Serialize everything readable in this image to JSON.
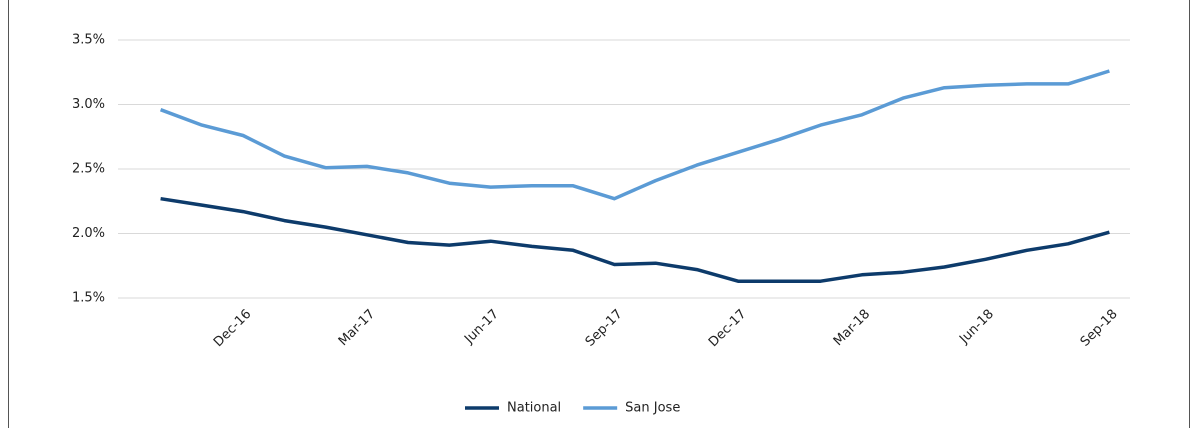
{
  "chart_data": {
    "type": "line",
    "categories": [
      null,
      null,
      "Dec-16",
      null,
      null,
      "Mar-17",
      null,
      null,
      "Jun-17",
      null,
      null,
      "Sep-17",
      null,
      null,
      "Dec-17",
      null,
      null,
      "Mar-18",
      null,
      null,
      "Jun-18",
      null,
      null,
      "Sep-18"
    ],
    "series": [
      {
        "name": "National",
        "color": "#0d3b6b",
        "values": [
          2.27,
          2.22,
          2.17,
          2.1,
          2.05,
          1.99,
          1.93,
          1.91,
          1.94,
          1.9,
          1.87,
          1.76,
          1.77,
          1.72,
          1.63,
          1.63,
          1.63,
          1.68,
          1.7,
          1.74,
          1.8,
          1.87,
          1.92,
          2.01
        ]
      },
      {
        "name": "San Jose",
        "color": "#5b9bd5",
        "values": [
          2.96,
          2.84,
          2.76,
          2.6,
          2.51,
          2.52,
          2.47,
          2.39,
          2.36,
          2.37,
          2.37,
          2.27,
          2.41,
          2.53,
          2.63,
          2.73,
          2.84,
          2.92,
          3.05,
          3.13,
          3.15,
          3.16,
          3.16,
          3.26
        ]
      }
    ],
    "ylim": [
      1.5,
      3.5
    ],
    "yticks": [
      {
        "value": 1.5,
        "label": "1.5%"
      },
      {
        "value": 2.0,
        "label": "2.0%"
      },
      {
        "value": 2.5,
        "label": "2.5%"
      },
      {
        "value": 3.0,
        "label": "3.0%"
      },
      {
        "value": 3.5,
        "label": "3.5%"
      }
    ],
    "grid": true,
    "legend": "bottom"
  }
}
